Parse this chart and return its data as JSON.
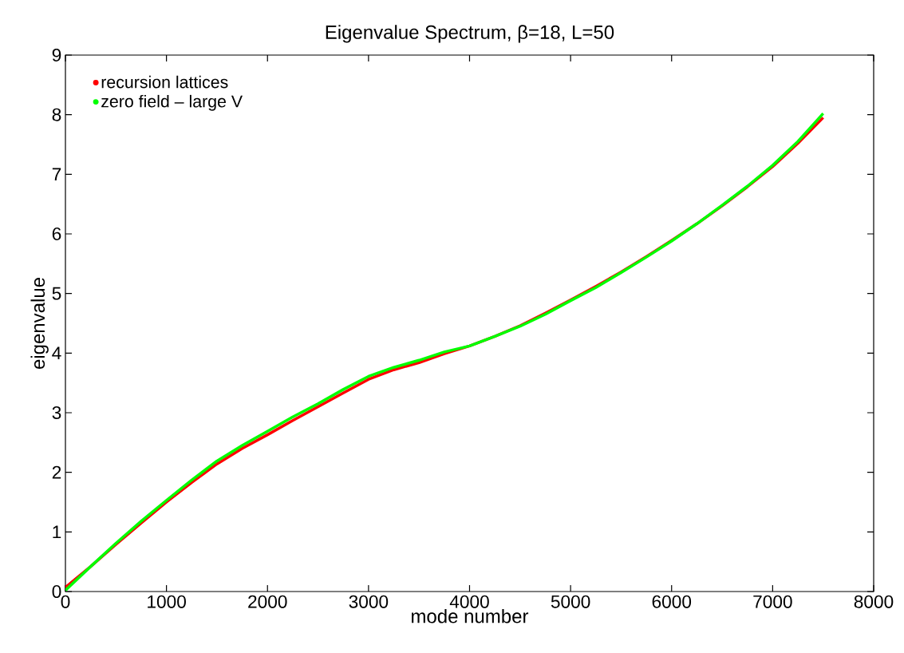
{
  "chart_data": {
    "type": "line",
    "title": "Eigenvalue Spectrum, β=18, L=50",
    "xlabel": "mode number",
    "ylabel": "eigenvalue",
    "x": [
      0,
      250,
      500,
      750,
      1000,
      1250,
      1500,
      1750,
      2000,
      2250,
      2500,
      2750,
      3000,
      3250,
      3500,
      3750,
      4000,
      4250,
      4500,
      4750,
      5000,
      5250,
      5500,
      5750,
      6000,
      6250,
      6500,
      6750,
      7000,
      7250,
      7500
    ],
    "series": [
      {
        "name": "recursion lattices",
        "color": "#ff0000",
        "values": [
          0.07,
          0.42,
          0.79,
          1.15,
          1.5,
          1.83,
          2.14,
          2.4,
          2.63,
          2.87,
          3.1,
          3.33,
          3.56,
          3.72,
          3.84,
          3.99,
          4.12,
          4.28,
          4.46,
          4.67,
          4.89,
          5.12,
          5.36,
          5.62,
          5.89,
          6.17,
          6.47,
          6.79,
          7.13,
          7.52,
          7.95
        ]
      },
      {
        "name": "zero field – large V",
        "color": "#00ff00",
        "values": [
          0.02,
          0.42,
          0.81,
          1.18,
          1.53,
          1.87,
          2.19,
          2.45,
          2.69,
          2.93,
          3.15,
          3.39,
          3.61,
          3.76,
          3.88,
          4.02,
          4.12,
          4.28,
          4.45,
          4.65,
          4.88,
          5.1,
          5.35,
          5.61,
          5.88,
          6.17,
          6.48,
          6.8,
          7.15,
          7.55,
          8.02
        ]
      }
    ],
    "xlim": [
      0,
      8000
    ],
    "ylim": [
      0,
      9
    ],
    "xticks": [
      0,
      1000,
      2000,
      3000,
      4000,
      5000,
      6000,
      7000,
      8000
    ],
    "yticks": [
      0,
      1,
      2,
      3,
      4,
      5,
      6,
      7,
      8,
      9
    ],
    "legend": "top left",
    "grid": false,
    "marker": "none",
    "line_style": "solid"
  }
}
